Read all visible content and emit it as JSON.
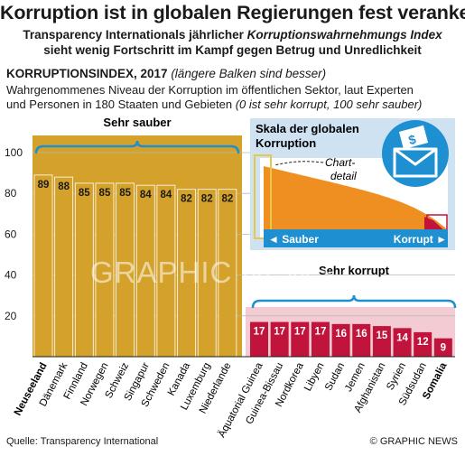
{
  "header": {
    "title": "Korruption ist in globalen Regierungen fest verankert",
    "subtitle_line1_a": "Transparency Internationals jährlicher ",
    "subtitle_line1_b": "Korruptionswahrnehmungs Index",
    "subtitle_line2": "sieht wenig Fortschritt im Kampf gegen Betrug und Unredlichkeit",
    "index_label": "KORRUPTIONSINDEX, 2017",
    "index_note": "(längere Balken sind besser)",
    "desc_line1": "Wahrgenommenes Niveau der Korruption im öffentlichen Sektor, laut Experten",
    "desc_line2_a": "und Personen in 180 Staaten und Gebieten ",
    "desc_line2_b": "(0 ist sehr korrupt, 100 sehr sauber)"
  },
  "footer": {
    "source": "Quelle: Transparency International",
    "credit": "© GRAPHIC NEWS"
  },
  "watermark": "GRAPHIC NEWS",
  "inset": {
    "title_line1": "Skala der globalen",
    "title_line2": "Korruption",
    "chart_detail_line1": "Chart-",
    "chart_detail_line2": "detail",
    "left_label": "◄ Sauber",
    "right_label": "Korrupt ►",
    "icon": "money-envelope-icon"
  },
  "group_labels": {
    "clean": "Sehr sauber",
    "corrupt": "Sehr korrupt"
  },
  "colors": {
    "clean_bar": "#d4a12a",
    "corrupt_bar": "#c0143c",
    "inset_bg": "#cfe2f2",
    "accent_blue": "#1e8fd0"
  },
  "chart_data": {
    "type": "bar",
    "y_ticks": [
      0,
      20,
      40,
      60,
      80,
      100
    ],
    "ylim": [
      0,
      100
    ],
    "grid": true,
    "series": [
      {
        "name": "Sehr sauber",
        "categories": [
          "Neuseeland",
          "Dänemark",
          "Finnland",
          "Norwegen",
          "Schweiz",
          "Singapur",
          "Schweden",
          "Kanada",
          "Luxemburg",
          "Niederlande"
        ],
        "values": [
          89,
          88,
          85,
          85,
          85,
          84,
          84,
          82,
          82,
          82
        ]
      },
      {
        "name": "Sehr korrupt",
        "categories": [
          "Äquatorial Guinea",
          "Guinea-Bissau",
          "Nordkorea",
          "Libyen",
          "Sudan",
          "Jemen",
          "Afghanistan",
          "Syrien",
          "Südsudan",
          "Somalia"
        ],
        "values": [
          17,
          17,
          17,
          17,
          16,
          16,
          15,
          14,
          12,
          9
        ]
      }
    ]
  }
}
